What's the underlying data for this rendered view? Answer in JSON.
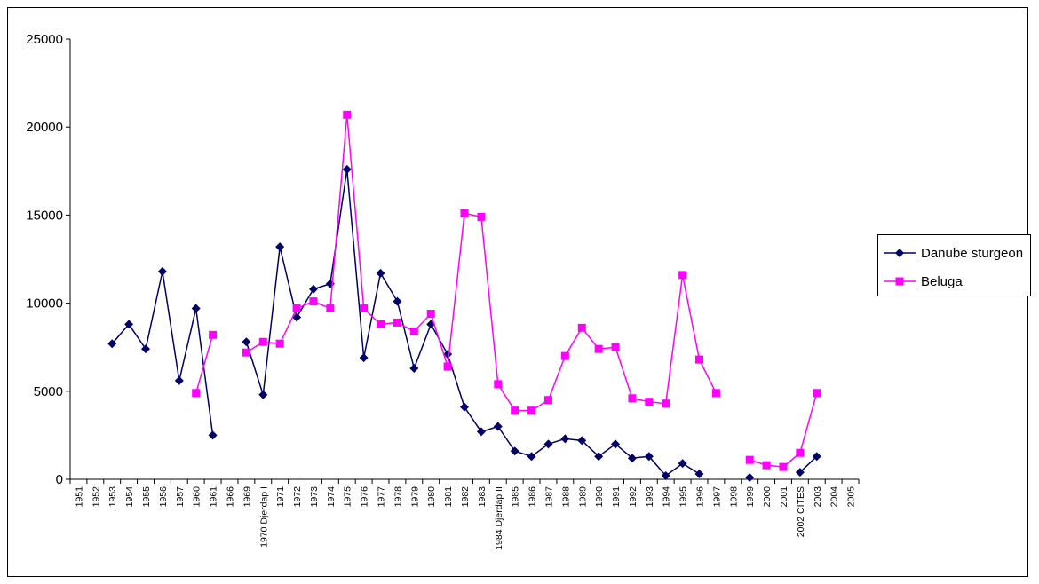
{
  "chart_data": {
    "type": "line",
    "title": "",
    "xlabel": "",
    "ylabel": "",
    "ylim": [
      0,
      25000
    ],
    "yticks": [
      0,
      5000,
      10000,
      15000,
      20000,
      25000
    ],
    "grid": false,
    "legend_position": "right",
    "categories": [
      "1951",
      "1952",
      "1953",
      "1954",
      "1955",
      "1956",
      "1957",
      "1960",
      "1961",
      "1966",
      "1969",
      "1970 Djerdap I",
      "1971",
      "1972",
      "1973",
      "1974",
      "1975",
      "1976",
      "1977",
      "1978",
      "1979",
      "1980",
      "1981",
      "1982",
      "1983",
      "1984 Djerdap II",
      "1985",
      "1986",
      "1987",
      "1988",
      "1989",
      "1990",
      "1991",
      "1992",
      "1993",
      "1994",
      "1995",
      "1996",
      "1997",
      "1998",
      "1999",
      "2000",
      "2001",
      "2002 CITES",
      "2003",
      "2004",
      "2005"
    ],
    "series": [
      {
        "name": "Danube sturgeon",
        "color": "#000066",
        "marker": "diamond",
        "values": [
          null,
          null,
          7700,
          8800,
          7400,
          11800,
          5600,
          9700,
          2500,
          null,
          7800,
          4800,
          13200,
          9200,
          10800,
          11100,
          17600,
          6900,
          11700,
          10100,
          6300,
          8800,
          7100,
          4100,
          2700,
          3000,
          1600,
          1300,
          2000,
          2300,
          2200,
          1300,
          2000,
          1200,
          1300,
          200,
          900,
          300,
          null,
          null,
          100,
          null,
          null,
          400,
          1300,
          null,
          null
        ]
      },
      {
        "name": "Beluga",
        "color": "#ff00ff",
        "marker": "square",
        "values": [
          null,
          null,
          null,
          null,
          null,
          null,
          null,
          4900,
          8200,
          null,
          7200,
          7800,
          7700,
          9700,
          10100,
          9700,
          20700,
          9700,
          8800,
          8900,
          8400,
          9400,
          6400,
          15100,
          14900,
          5400,
          3900,
          3900,
          4500,
          7000,
          8600,
          7400,
          7500,
          4600,
          4400,
          4300,
          11600,
          6800,
          4900,
          null,
          1100,
          800,
          700,
          1500,
          4900,
          null,
          null
        ]
      }
    ]
  }
}
